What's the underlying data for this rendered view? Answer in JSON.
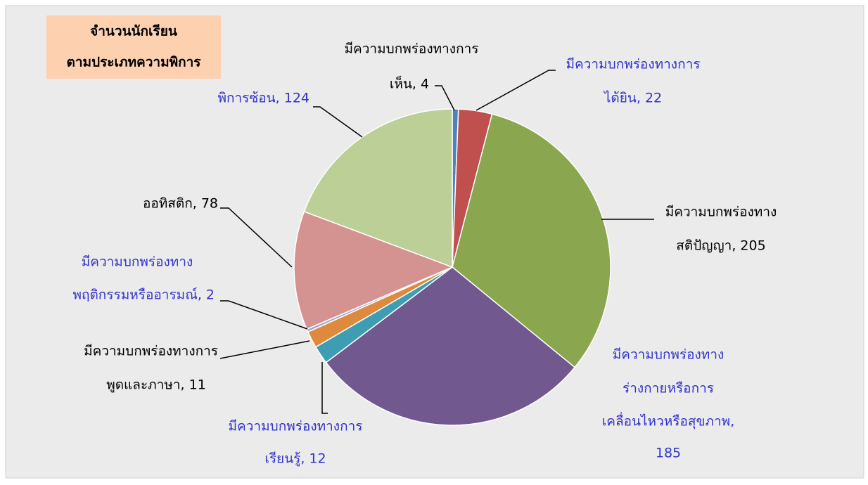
{
  "chart_data": {
    "type": "pie",
    "title": [
      "จำนวนนักเรียน",
      "ตามประเภทความพิการ"
    ],
    "labels": [
      [
        "มีความบกพร่องทางการ",
        "เห็น, 4"
      ],
      [
        "มีความบกพร่องทางการ",
        "ได้ยิน, 22"
      ],
      [
        "มีความบกพร่องทาง",
        "สติปัญญา, 205"
      ],
      [
        "มีความบกพร่องทาง",
        "ร่างกายหรือการ",
        "เคลื่อนไหวหรือสุขภาพ,",
        "185"
      ],
      [
        "มีความบกพร่องทางการ",
        "เรียนรู้, 12"
      ],
      [
        "มีความบกพร่องทางการ",
        "พูดและภาษา, 11"
      ],
      [
        "มีความบกพร่องทาง",
        "พฤติกรรมหรืออารมณ์, 2"
      ],
      [
        "ออทิสติก, 78"
      ],
      [
        "พิการซ้อน, 124"
      ]
    ],
    "values": [
      4,
      22,
      205,
      185,
      12,
      11,
      2,
      78,
      124
    ],
    "colors": [
      "#4f81bd",
      "#c0504d",
      "#8aa64e",
      "#71588f",
      "#3d9db3",
      "#dd8a3e",
      "#a9a9d6",
      "#d49390",
      "#bccf97"
    ],
    "label_colors": [
      "#000000",
      "#3333cc",
      "#000000",
      "#3333cc",
      "#3333cc",
      "#000000",
      "#3333cc",
      "#000000",
      "#3333cc"
    ]
  }
}
